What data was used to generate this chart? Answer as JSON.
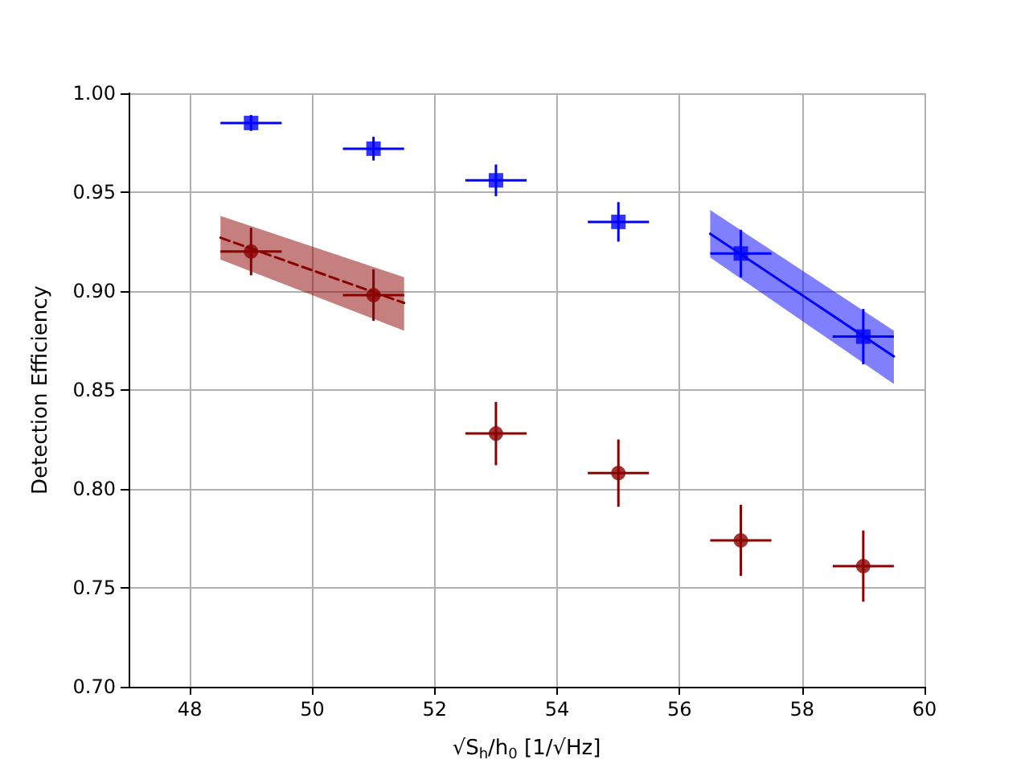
{
  "chart_data": {
    "type": "scatter",
    "xlabel": "√S$_{h}$/h$_{0}$ [1/√Hz]",
    "ylabel": "Detection Efficiency",
    "xlim": [
      47,
      60
    ],
    "xticks": [
      48,
      50,
      52,
      54,
      56,
      58,
      60
    ],
    "ylim": [
      0.7,
      1.0
    ],
    "yticks": [
      {
        "value": 0.7,
        "label": "0.70"
      },
      {
        "value": 0.75,
        "label": "0.75"
      },
      {
        "value": 0.8,
        "label": "0.80"
      },
      {
        "value": 0.85,
        "label": "0.85"
      },
      {
        "value": 0.9,
        "label": "0.90"
      },
      {
        "value": 0.95,
        "label": "0.95"
      },
      {
        "value": 1.0,
        "label": "1.00"
      }
    ],
    "grid": true,
    "series": [
      {
        "color": "#0000ff",
        "marker": "square",
        "x": [
          49,
          51,
          53,
          55,
          57,
          59
        ],
        "values": [
          0.985,
          0.972,
          0.956,
          0.935,
          0.919,
          0.877
        ],
        "errors": [
          0.004,
          0.006,
          0.008,
          0.01,
          0.012,
          0.014
        ],
        "xerrors": [
          0.5,
          0.5,
          0.5,
          0.5,
          0.5,
          0.5
        ]
      },
      {
        "color": "#8b0000",
        "marker": "circle",
        "x": [
          49,
          51,
          53,
          55,
          57,
          59
        ],
        "values": [
          0.92,
          0.898,
          0.828,
          0.808,
          0.774,
          0.761
        ],
        "errors": [
          0.012,
          0.013,
          0.016,
          0.017,
          0.018,
          0.018
        ],
        "xerrors": [
          0.5,
          0.5,
          0.5,
          0.5,
          0.5,
          0.5
        ]
      },
      {
        "type": "line",
        "color": "#8b0000",
        "marker": "none",
        "line_style": "dashed",
        "x": [
          48.5,
          51.5
        ],
        "values": [
          0.927,
          0.894
        ],
        "lower": [
          0.916,
          0.88
        ],
        "upper": [
          0.938,
          0.907
        ]
      },
      {
        "type": "line",
        "color": "#0000ff",
        "marker": "none",
        "line_style": "solid",
        "x": [
          56.5,
          59.5
        ],
        "values": [
          0.929,
          0.867
        ],
        "lower": [
          0.917,
          0.853
        ],
        "upper": [
          0.941,
          0.88
        ]
      }
    ]
  }
}
